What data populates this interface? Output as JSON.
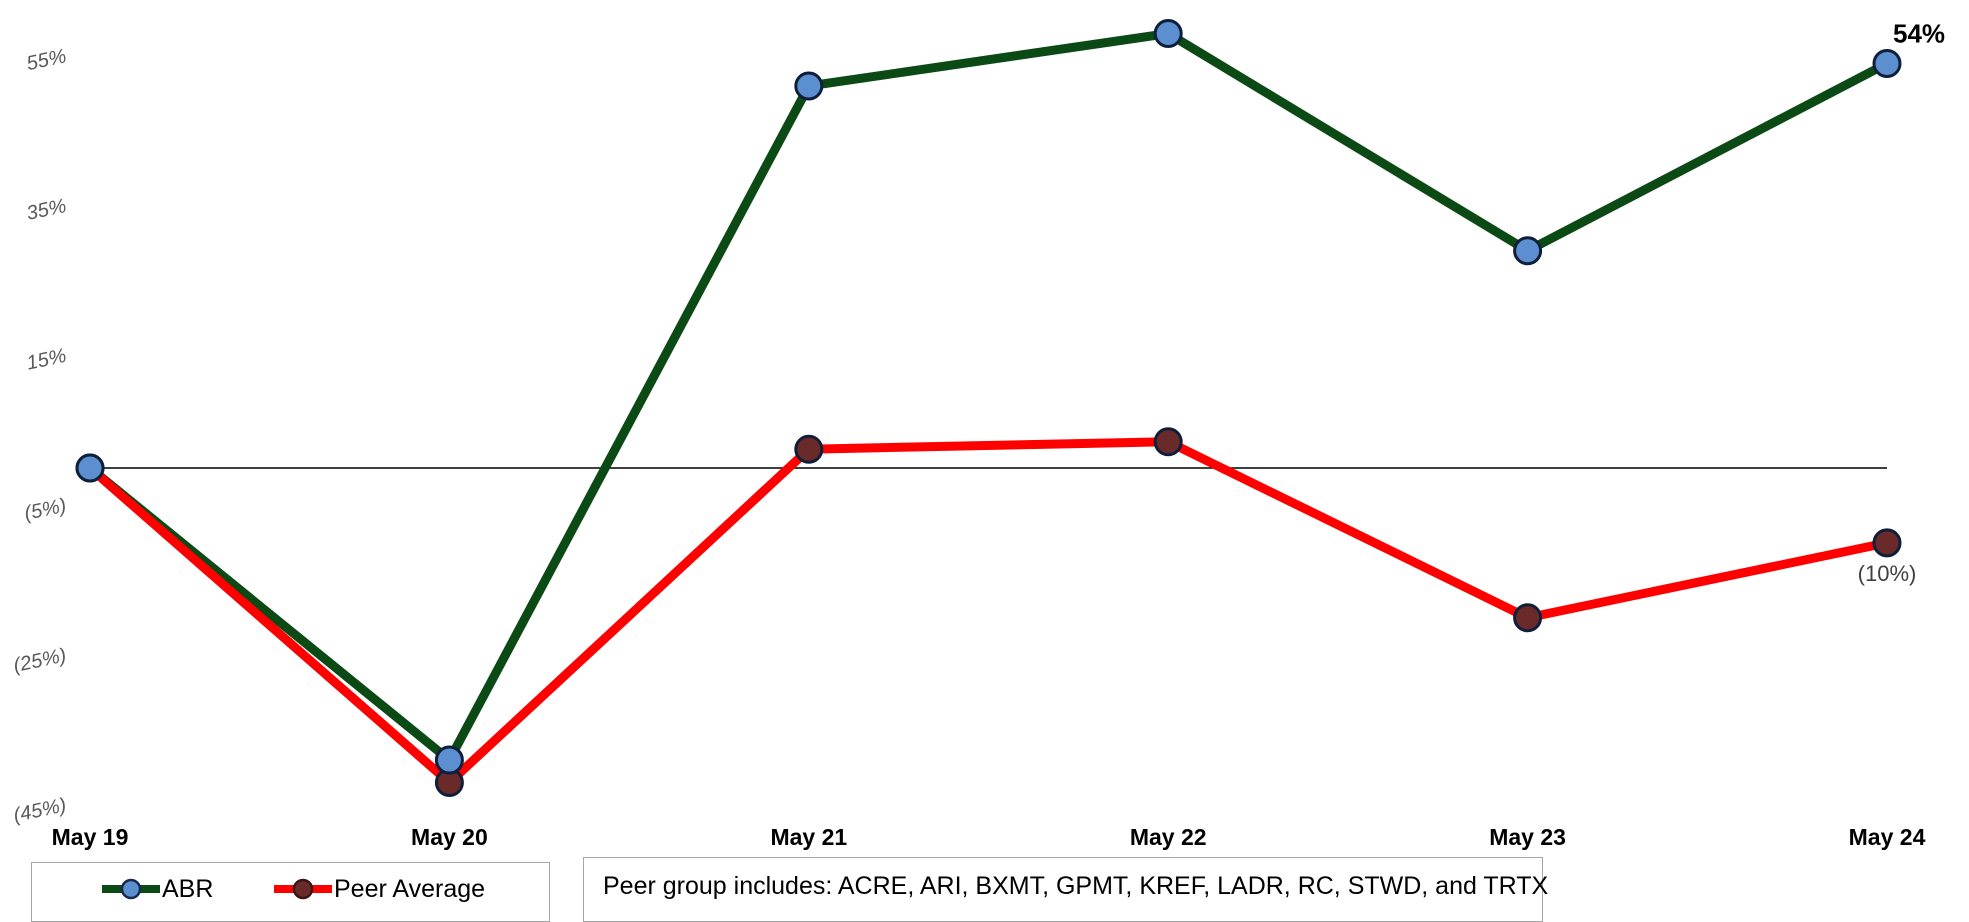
{
  "chart_data": {
    "type": "line",
    "title": "",
    "xlabel": "",
    "ylabel": "",
    "categories": [
      "May 19",
      "May 20",
      "May 21",
      "May 22",
      "May 23",
      "May 24"
    ],
    "ylim": [
      -45,
      60
    ],
    "yticks": [
      55,
      35,
      15,
      -5,
      -25,
      -45
    ],
    "ytick_labels": [
      "55%",
      "35%",
      "15%",
      "(5%)",
      "(25%)",
      "(45%)"
    ],
    "baseline": 0,
    "series": [
      {
        "name": "ABR",
        "values": [
          0,
          -39,
          51,
          58,
          29,
          54
        ],
        "color": "#0b4a14",
        "marker_color": "#5b8fd0"
      },
      {
        "name": "Peer Average",
        "values": [
          0,
          -42,
          2.5,
          3.5,
          -20,
          -10
        ],
        "color": "#ff0000",
        "marker_color": "#6b2a2a"
      }
    ],
    "end_labels": [
      {
        "series": "ABR",
        "text": "54%"
      },
      {
        "series": "Peer Average",
        "text": "(10%)"
      }
    ],
    "legend": {
      "placement": "bottom-left"
    }
  },
  "note": {
    "text": "Peer group includes:  ACRE, ARI, BXMT, GPMT, KREF, LADR, RC, STWD, and TRTX"
  }
}
